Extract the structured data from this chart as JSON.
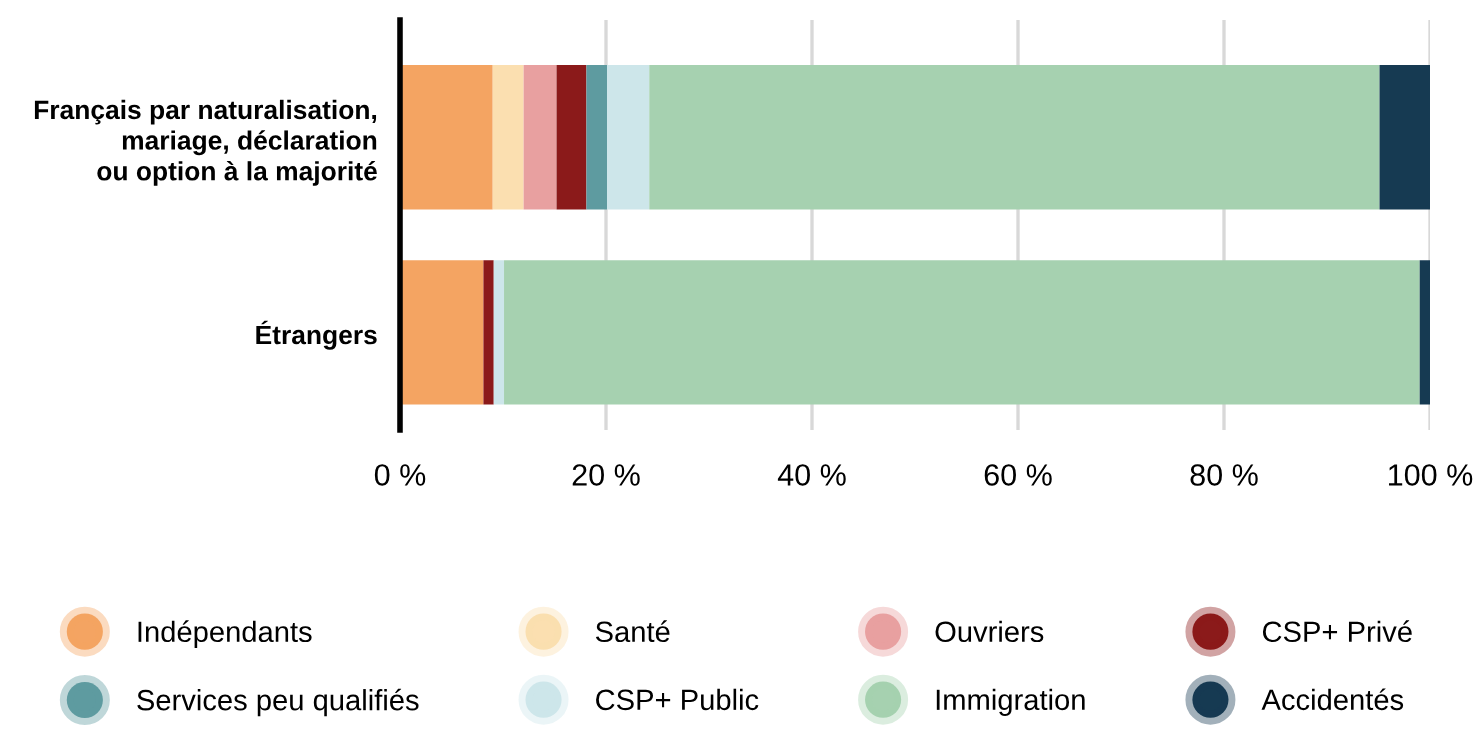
{
  "chart_data": {
    "type": "bar",
    "orientation": "horizontal",
    "stacked": true,
    "categories": [
      "Français par naturalisation,\nmariage, déclaration\nou option à la majorité",
      "Étrangers"
    ],
    "series": [
      {
        "name": "Indépendants",
        "color": "#f4a462",
        "values": [
          9.0,
          8.1
        ]
      },
      {
        "name": "Santé",
        "color": "#fbdfb0",
        "values": [
          3.0,
          0
        ]
      },
      {
        "name": "Ouvriers",
        "color": "#e8a0a0",
        "values": [
          3.2,
          0
        ]
      },
      {
        "name": "CSP+ Privé",
        "color": "#8b1a1a",
        "values": [
          2.9,
          1.0
        ]
      },
      {
        "name": "Services peu qualifiés",
        "color": "#5e9ba0",
        "values": [
          2.0,
          0
        ]
      },
      {
        "name": "CSP+ Public",
        "color": "#cde6ea",
        "values": [
          4.1,
          1.0
        ]
      },
      {
        "name": "Immigration",
        "color": "#a6d1b0",
        "values": [
          70.9,
          88.9
        ]
      },
      {
        "name": "Accidentés",
        "color": "#163a52",
        "values": [
          4.9,
          1.0
        ]
      }
    ],
    "xlim": [
      0,
      100
    ],
    "xticks": [
      {
        "value": 0,
        "label": "0 %"
      },
      {
        "value": 20,
        "label": "20 %"
      },
      {
        "value": 40,
        "label": "40 %"
      },
      {
        "value": 60,
        "label": "60 %"
      },
      {
        "value": 80,
        "label": "80 %"
      },
      {
        "value": 100,
        "label": "100 %"
      }
    ],
    "grid": "x",
    "legend": "bottom"
  }
}
